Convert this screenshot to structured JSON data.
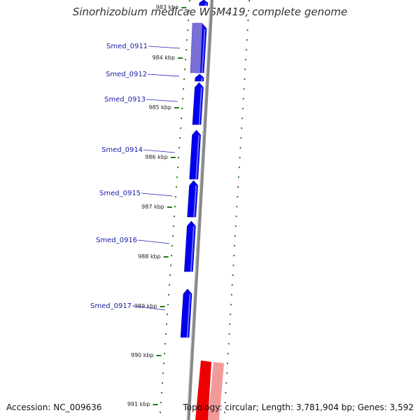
{
  "title": "Sinorhizobium medicae WSM419, complete genome",
  "footer": {
    "accession": "Accession: NC_009636",
    "topology": "Topology: circular; Length: 3,781,904 bp; Genes: 3,592"
  },
  "colors": {
    "forward_gene": "#0000ee",
    "forward_gene_light": "#7a6fd6",
    "reverse_gene": "#ee0000",
    "reverse_gene_light": "#f29a9a",
    "backbone": "#888888",
    "gc_ticks": "#1f7a1f",
    "label_text": "#1a1aa8"
  },
  "kbp_markers": [
    {
      "label": "983 kbp"
    },
    {
      "label": "984 kbp"
    },
    {
      "label": "985 kbp"
    },
    {
      "label": "986 kbp"
    },
    {
      "label": "987 kbp"
    },
    {
      "label": "988 kbp"
    },
    {
      "label": "989 kbp"
    },
    {
      "label": "990 kbp"
    },
    {
      "label": "991 kbp"
    }
  ],
  "gene_labels": [
    {
      "name": "Smed_0911"
    },
    {
      "name": "Smed_0912"
    },
    {
      "name": "Smed_0913"
    },
    {
      "name": "Smed_0914"
    },
    {
      "name": "Smed_0915"
    },
    {
      "name": "Smed_0916"
    },
    {
      "name": "Smed_0917"
    }
  ]
}
